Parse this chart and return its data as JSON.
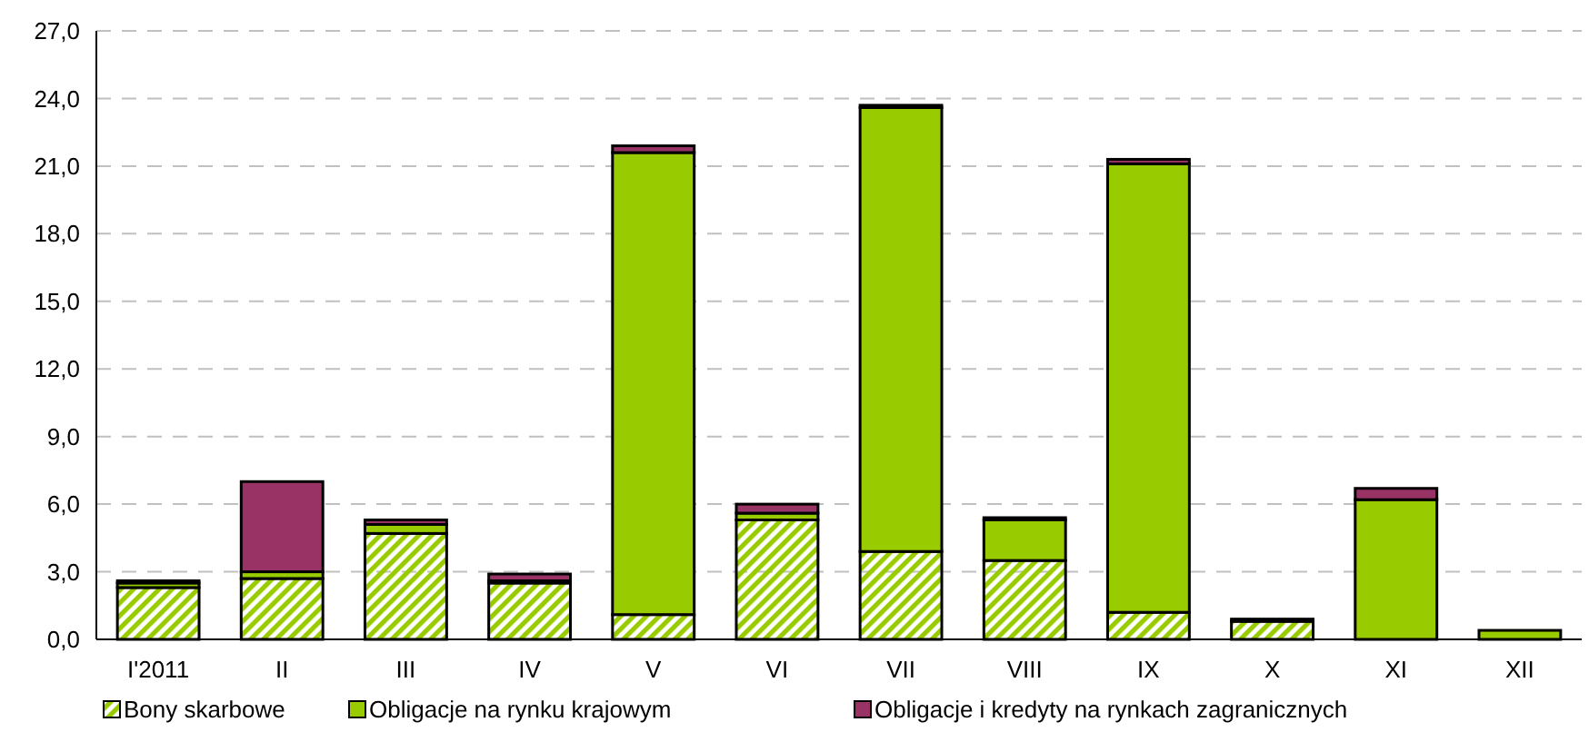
{
  "chart_data": {
    "type": "bar",
    "stacked": true,
    "categories": [
      "I'2011",
      "II",
      "III",
      "IV",
      "V",
      "VI",
      "VII",
      "VIII",
      "IX",
      "X",
      "XI",
      "XII"
    ],
    "series": [
      {
        "name": "Bony skarbowe",
        "color": "#99cc00",
        "values": [
          2.3,
          2.7,
          4.7,
          2.5,
          1.1,
          5.3,
          3.9,
          3.5,
          1.2,
          0.8,
          0,
          0
        ]
      },
      {
        "name": "Obligacje na rynku krajowym",
        "color": "#99cc00",
        "values": [
          0.2,
          0.3,
          0.4,
          0.1,
          20.5,
          0.3,
          19.7,
          1.8,
          19.9,
          0.1,
          6.2,
          0.4
        ]
      },
      {
        "name": "Obligacje i kredyty na rynkach zagranicznych",
        "color": "#993366",
        "values": [
          0.1,
          4.0,
          0.2,
          0.3,
          0.3,
          0.4,
          0.1,
          0.1,
          0.2,
          null,
          0.5,
          null
        ]
      }
    ],
    "ylim": [
      0,
      27
    ],
    "yticks": [
      {
        "value": 0,
        "label": "0,0"
      },
      {
        "value": 3,
        "label": "3,0"
      },
      {
        "value": 6,
        "label": "6,0"
      },
      {
        "value": 9,
        "label": "9,0"
      },
      {
        "value": 12,
        "label": "12,0"
      },
      {
        "value": 15,
        "label": "15,0"
      },
      {
        "value": 18,
        "label": "18,0"
      },
      {
        "value": 21,
        "label": "21,0"
      },
      {
        "value": 24,
        "label": "24,0"
      },
      {
        "value": 27,
        "label": "27,0"
      }
    ],
    "grid": "y",
    "legend": "bottom"
  }
}
